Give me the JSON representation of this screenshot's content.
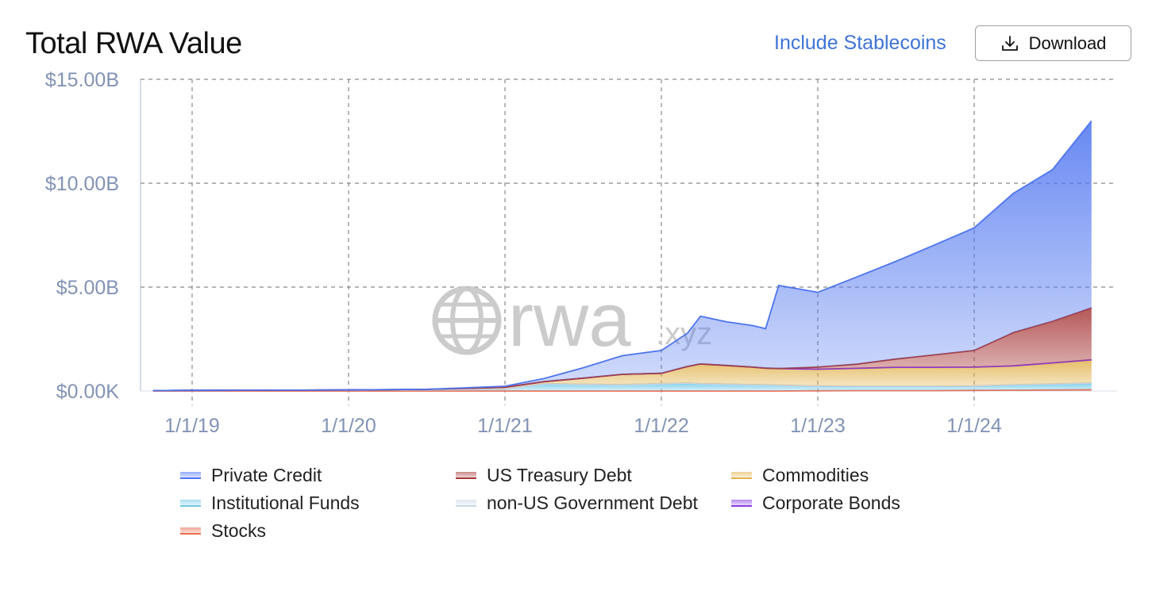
{
  "header": {
    "title": "Total RWA Value",
    "include_stablecoins_label": "Include Stablecoins",
    "download_label": "Download"
  },
  "watermark": {
    "text_main": "rwa",
    "text_suffix": ".xyz"
  },
  "chart_data": {
    "type": "area",
    "title": "Total RWA Value",
    "xlabel": "",
    "ylabel": "",
    "stacked": true,
    "grid": true,
    "legend_position": "bottom",
    "x_ticks": [
      "1/1/19",
      "1/1/20",
      "1/1/21",
      "1/1/22",
      "1/1/23",
      "1/1/24"
    ],
    "y_ticks": [
      "$0.00K",
      "$5.00B",
      "$10.00B",
      "$15.00B"
    ],
    "ylim": [
      0,
      15
    ],
    "y_unit": "billion USD",
    "x": [
      "2018-10",
      "2019-01",
      "2019-07",
      "2020-01",
      "2020-07",
      "2021-01",
      "2021-04",
      "2021-07",
      "2021-10",
      "2022-01",
      "2022-03",
      "2022-04",
      "2022-06",
      "2022-08",
      "2022-09",
      "2022-10",
      "2023-01",
      "2023-04",
      "2023-07",
      "2023-10",
      "2024-01",
      "2024-04",
      "2024-07",
      "2024-10"
    ],
    "series": [
      {
        "name": "Stocks",
        "color": "#ef6a4c",
        "values": [
          0,
          0,
          0,
          0,
          0,
          0,
          0,
          0,
          0,
          0,
          0,
          0,
          0,
          0,
          0,
          0,
          0.01,
          0.02,
          0.02,
          0.02,
          0.03,
          0.04,
          0.05,
          0.06
        ]
      },
      {
        "name": "Institutional Funds",
        "color": "#6cc8e8",
        "values": [
          0.02,
          0.03,
          0.04,
          0.05,
          0.06,
          0.08,
          0.35,
          0.32,
          0.3,
          0.35,
          0.38,
          0.35,
          0.33,
          0.3,
          0.3,
          0.28,
          0.22,
          0.2,
          0.2,
          0.2,
          0.2,
          0.25,
          0.28,
          0.32
        ]
      },
      {
        "name": "non-US Government Debt",
        "color": "#c9d6e8",
        "values": [
          0,
          0,
          0,
          0,
          0,
          0,
          0,
          0,
          0,
          0,
          0,
          0,
          0,
          0,
          0,
          0,
          0.01,
          0.01,
          0.01,
          0.01,
          0.01,
          0.01,
          0.01,
          0.01
        ]
      },
      {
        "name": "Commodities",
        "color": "#e0b24c",
        "values": [
          0,
          0,
          0,
          0,
          0.02,
          0.1,
          0.1,
          0.3,
          0.5,
          0.5,
          0.8,
          0.95,
          0.9,
          0.85,
          0.8,
          0.8,
          0.8,
          0.85,
          0.9,
          0.9,
          0.9,
          0.9,
          1.0,
          1.1
        ]
      },
      {
        "name": "Corporate Bonds",
        "color": "#8a3ee0",
        "values": [
          0,
          0,
          0,
          0,
          0,
          0,
          0,
          0,
          0,
          0,
          0,
          0,
          0,
          0,
          0,
          0,
          0.01,
          0.01,
          0.01,
          0.01,
          0.01,
          0.01,
          0.01,
          0.01
        ]
      },
      {
        "name": "US Treasury Debt",
        "color": "#a83a3a",
        "values": [
          0,
          0,
          0,
          0,
          0,
          0,
          0,
          0,
          0,
          0,
          0,
          0,
          0,
          0,
          0,
          0,
          0.1,
          0.2,
          0.4,
          0.6,
          0.8,
          1.6,
          2.0,
          2.5
        ]
      },
      {
        "name": "Private Credit",
        "color": "#4d74f0",
        "values": [
          0,
          0,
          0,
          0,
          0,
          0.05,
          0.15,
          0.5,
          0.9,
          1.1,
          1.6,
          2.3,
          2.1,
          2.0,
          1.9,
          4.0,
          3.6,
          4.2,
          4.7,
          5.3,
          5.9,
          6.7,
          7.3,
          9.0
        ]
      }
    ]
  },
  "legend": [
    {
      "label": "Private Credit",
      "color": "#4d74f0"
    },
    {
      "label": "US Treasury Debt",
      "color": "#a83a3a"
    },
    {
      "label": "Commodities",
      "color": "#e0b24c"
    },
    {
      "label": "Institutional Funds",
      "color": "#6cc8e8"
    },
    {
      "label": "non-US Government Debt",
      "color": "#c9d6e8"
    },
    {
      "label": "Corporate Bonds",
      "color": "#8a3ee0"
    },
    {
      "label": "Stocks",
      "color": "#ef6a4c"
    }
  ]
}
